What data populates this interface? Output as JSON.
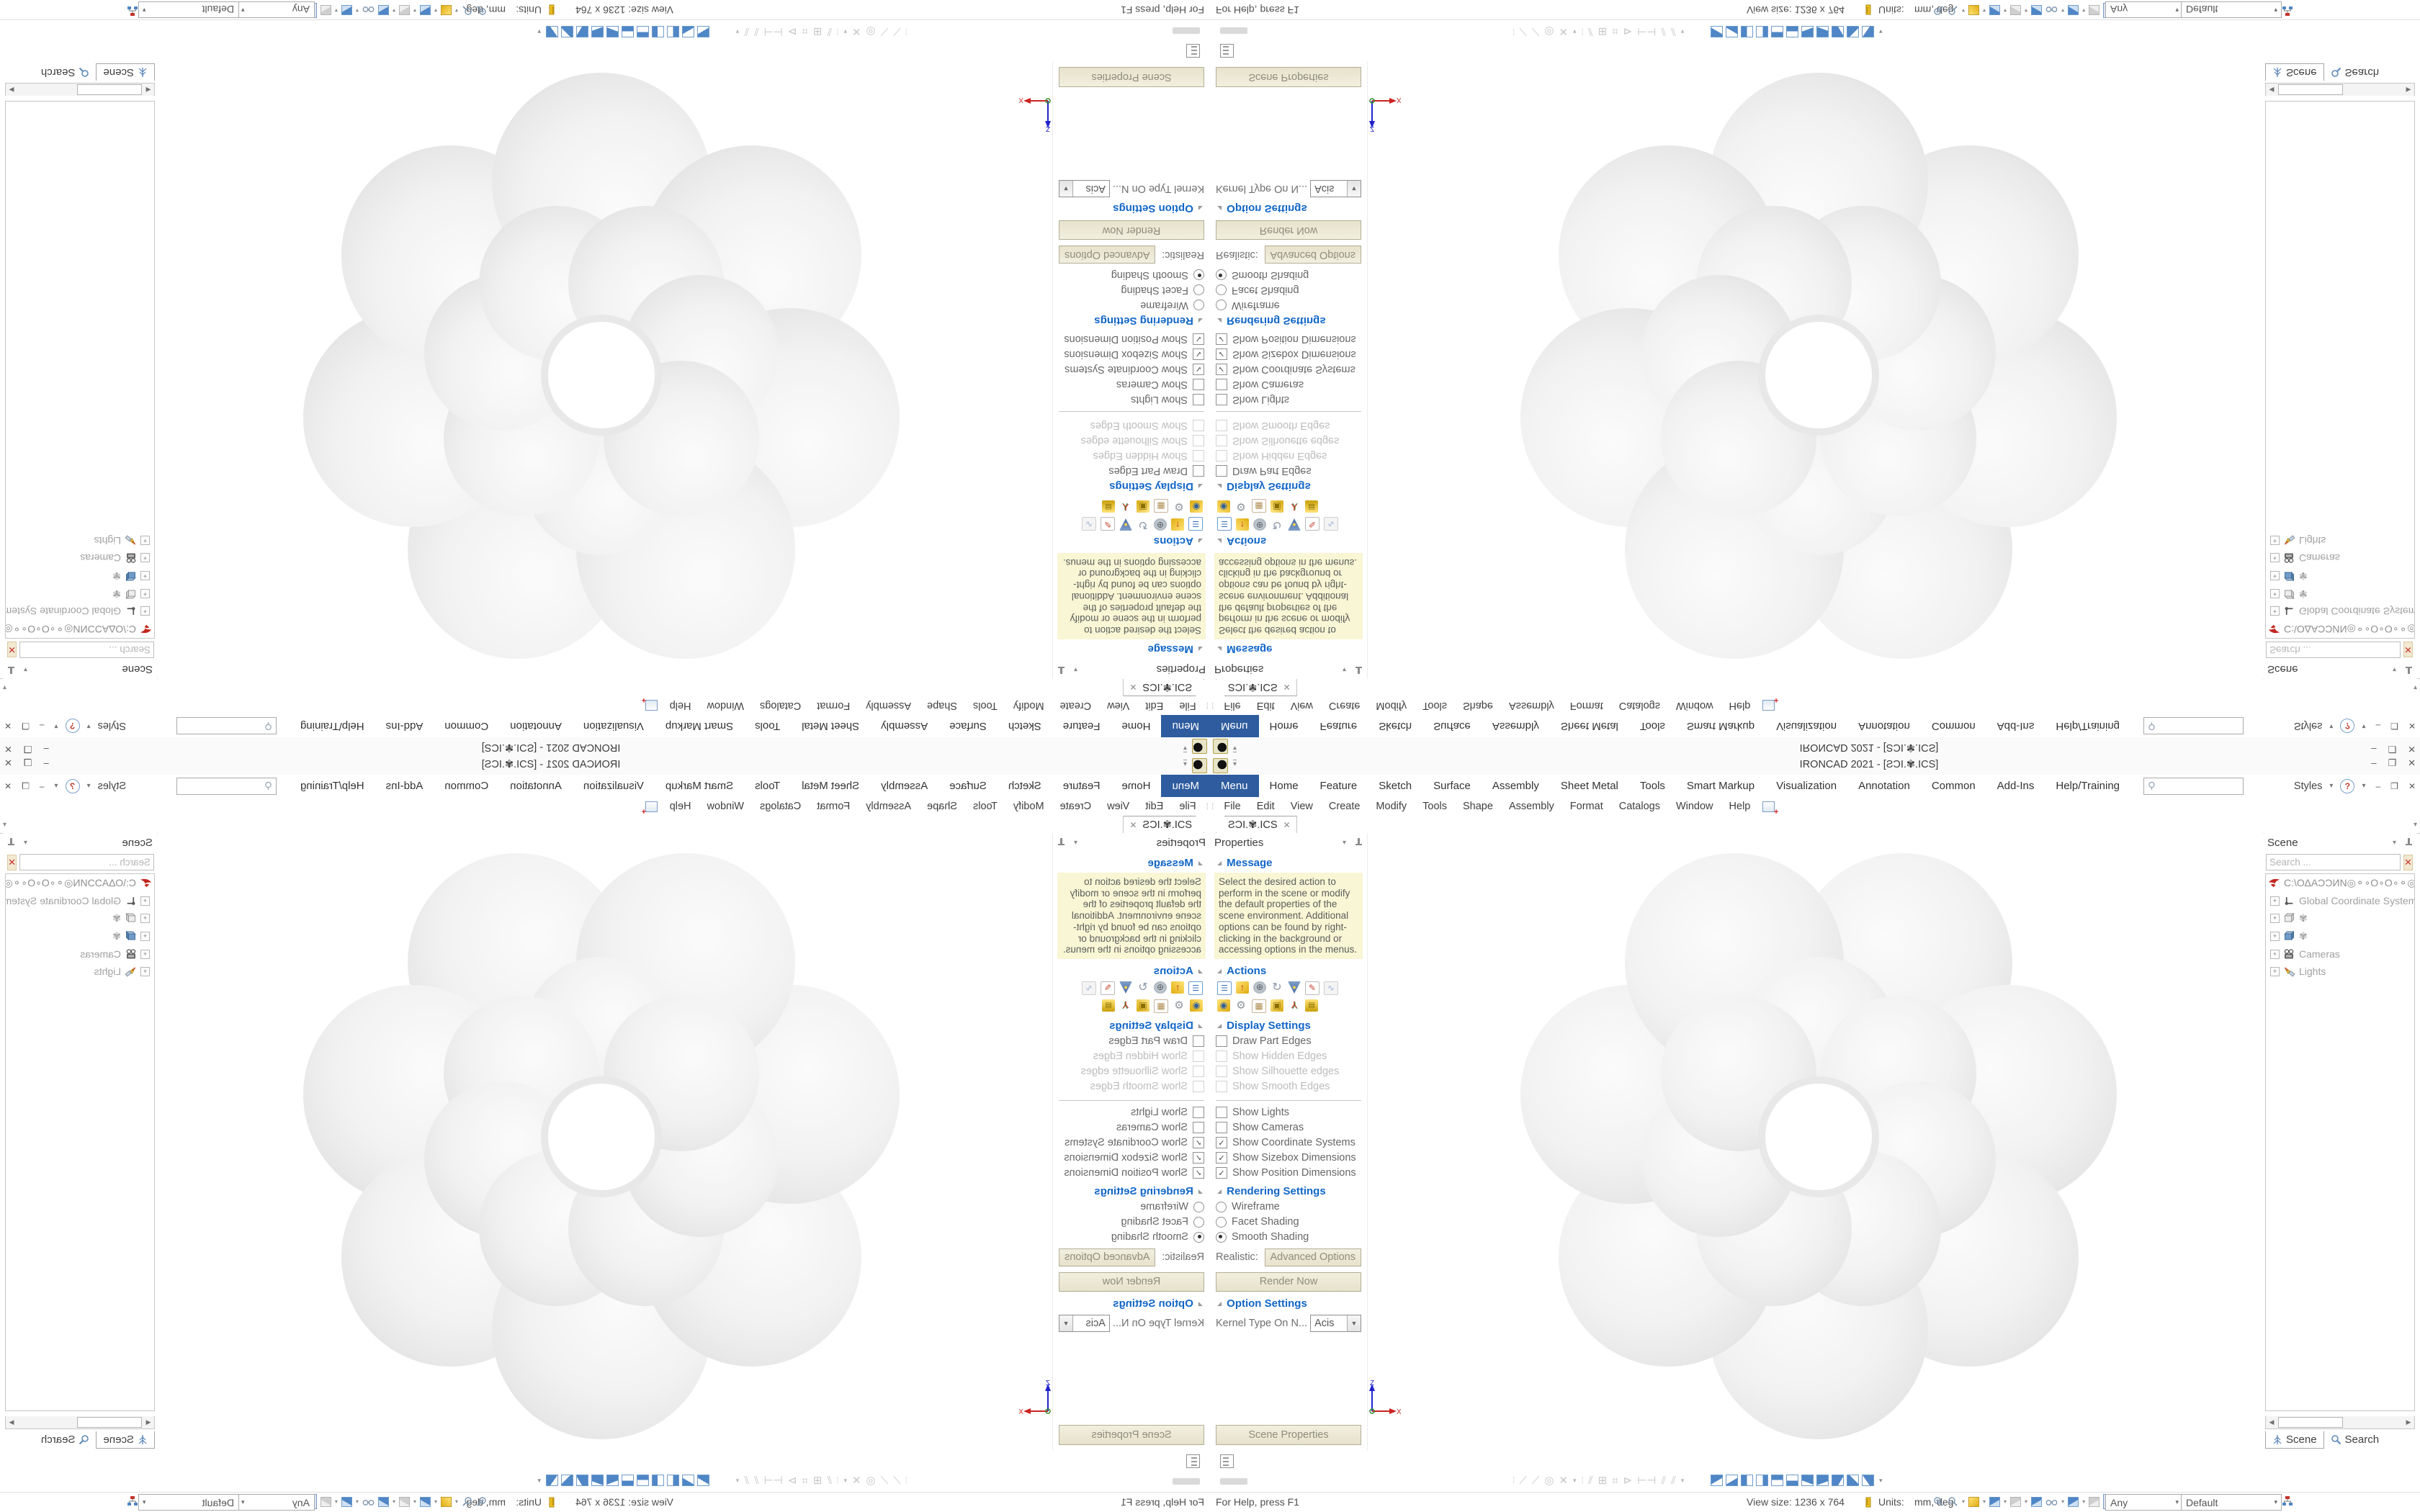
{
  "app": {
    "title": "IRONCAD 2021 - [ƧƆI.✾.ICS]",
    "window_buttons": {
      "minimize": "–",
      "restore": "❐",
      "close": "✕"
    },
    "qat_more": "▾"
  },
  "ribbon": {
    "selected_tab": "Menu",
    "tabs": [
      {
        "label": "Menu"
      },
      {
        "label": "Home"
      },
      {
        "label": "Feature"
      },
      {
        "label": "Sketch"
      },
      {
        "label": "Surface"
      },
      {
        "label": "Assembly"
      },
      {
        "label": "Sheet Metal"
      },
      {
        "label": "Tools"
      },
      {
        "label": "Smart Markup"
      },
      {
        "label": "Visualization"
      },
      {
        "label": "Annotation"
      },
      {
        "label": "Common"
      },
      {
        "label": "Add-Ins"
      },
      {
        "label": "Help/Training"
      }
    ],
    "styles_label": "Styles",
    "help_label": "?",
    "dropdown_glyph": "▾"
  },
  "menubar": {
    "items": [
      {
        "label": "File"
      },
      {
        "label": "Edit"
      },
      {
        "label": "View"
      },
      {
        "label": "Create"
      },
      {
        "label": "Modify"
      },
      {
        "label": "Tools"
      },
      {
        "label": "Shape"
      },
      {
        "label": "Assembly"
      },
      {
        "label": "Format"
      },
      {
        "label": "Catalogs"
      },
      {
        "label": "Window"
      },
      {
        "label": "Help"
      }
    ],
    "new_window_icon": "window-new-icon"
  },
  "doc_tabs": {
    "active_label": "ƧƆI.✾.ICS",
    "close_glyph": "✕",
    "overflow_glyph": "▾"
  },
  "properties_panel": {
    "title": "Properties",
    "message": {
      "header": "Message",
      "text": "Select the desired action to perform in the scene or modify the default properties of the scene environment. Additional options can be found by right-clicking in the background or accessing options in the menus."
    },
    "actions": {
      "header": "Actions",
      "icons_row1": [
        "properties-list-icon",
        "extrude-shape-icon",
        "rotate-anchor-icon",
        "sweep-arrow-icon",
        "gravity-funnel-icon",
        "edit-sheet-icon",
        "graph-icon"
      ],
      "icons_row2": [
        "camera-box-icon",
        "gear-settings-icon",
        "render-table-icon",
        "lock-blocks-icon",
        "triad-icon",
        "drawer-stack-icon"
      ]
    },
    "display": {
      "header": "Display Settings",
      "group1": [
        {
          "label": "Draw Part Edges",
          "checked": false,
          "enabled": true
        },
        {
          "label": "Show Hidden Edges",
          "checked": false,
          "enabled": false
        },
        {
          "label": "Show Silhouette edges",
          "checked": false,
          "enabled": false
        },
        {
          "label": "Show Smooth Edges",
          "checked": false,
          "enabled": false
        }
      ],
      "group2": [
        {
          "label": "Show Lights",
          "checked": false,
          "enabled": true
        },
        {
          "label": "Show Cameras",
          "checked": false,
          "enabled": true
        },
        {
          "label": "Show Coordinate Systems",
          "checked": true,
          "enabled": true
        },
        {
          "label": "Show Sizebox Dimensions",
          "checked": true,
          "enabled": true
        },
        {
          "label": "Show Position Dimensions",
          "checked": true,
          "enabled": true
        }
      ],
      "check_glyph": "✓"
    },
    "rendering": {
      "header": "Rendering Settings",
      "radios": [
        {
          "label": "Wireframe",
          "selected": false
        },
        {
          "label": "Facet Shading",
          "selected": false
        },
        {
          "label": "Smooth Shading",
          "selected": true
        }
      ],
      "realistic_label": "Realistic:",
      "advanced_button": "Advanced Options",
      "render_button": "Render Now"
    },
    "options": {
      "header": "Option Settings",
      "kernel_label": "Kernel Type On N...",
      "kernel_value": "Acis"
    },
    "bottom_button": "Scene Properties"
  },
  "scene_panel": {
    "title": "Scene",
    "search_placeholder": "Search ...",
    "clear_glyph": "✕",
    "tree": {
      "root_label": "C:\\ΟΔΑƆƆИΝ◎⚬∘Ο∘Ο∘⚬◎ИΝ",
      "items": [
        {
          "icon": "coordinate-system-icon",
          "label": "Global Coordinate System"
        },
        {
          "icon": "part-gray-icon",
          "label": "✾"
        },
        {
          "icon": "part-blue-icon",
          "label": "✾"
        },
        {
          "icon": "camera-icon",
          "label": "Cameras"
        },
        {
          "icon": "light-icon",
          "label": "Lights"
        }
      ],
      "expander_glyph": "+"
    },
    "tabs": [
      {
        "label": "Scene",
        "icon": "scene-tree-icon",
        "selected": true
      },
      {
        "label": "Search",
        "icon": "search-icon",
        "selected": false
      }
    ]
  },
  "viewport": {
    "axis_labels": {
      "x": "X",
      "y": "Y",
      "z": "Z"
    },
    "model": "seven-lobed blob torus, smooth shaded light gray"
  },
  "lower_toolbar": {
    "sketch_tools": [
      "line-2pt-icon",
      "line-icon",
      "circle-icon",
      "close-icon"
    ],
    "dimension_tools": [
      "hatch-icon",
      "move-grid-icon",
      "grid-icon",
      "flag-icon",
      "dimension-icon",
      "parallel-dim-icon",
      "parallel-dim2-icon"
    ],
    "view_cubes_count": 11,
    "dropdown_glyph": "▾"
  },
  "statusbar": {
    "help_text": "For Help, press F1",
    "view_size": "View size: 1236 x  764",
    "units_label": "Units:",
    "units_value": "mm, deg",
    "selection_filter_value": "Any",
    "render_style_value": "Default",
    "icons": [
      "zoom-in-icon",
      "zoom-out-icon",
      "yellow-box-icon",
      "blue-box-icon",
      "gray-dolly-icon",
      "prism-icon",
      "glasses-icon",
      "view-cube-icon",
      "orbit-icon",
      "cursor-select-icon",
      "marquee-select-icon",
      "hierarchy-icon"
    ]
  },
  "colors": {
    "accent_blue": "#2e5c9e",
    "section_header_blue": "#1266c8",
    "message_yellow": "#f8f6d4",
    "button_beige": "#ece9d8",
    "close_red": "#c3342b",
    "axis_x_red": "#cc2222",
    "axis_y_green": "#2e8b2e",
    "axis_z_blue": "#2222cc"
  }
}
